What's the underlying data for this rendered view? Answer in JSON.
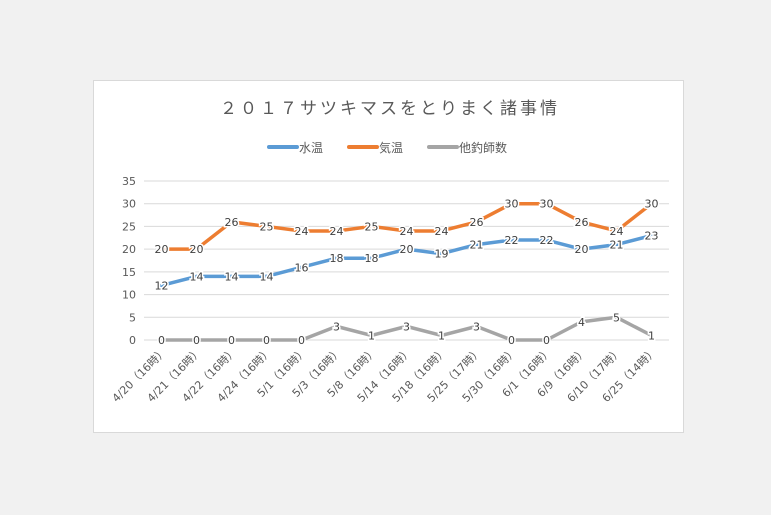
{
  "chart_data": {
    "type": "line",
    "title": "２０１７サツキマスをとりまく諸事情",
    "xlabel": "",
    "ylabel": "",
    "ylim": [
      0,
      35
    ],
    "yticks": [
      0,
      5,
      10,
      15,
      20,
      25,
      30,
      35
    ],
    "grid": true,
    "legend_position": "top",
    "categories": [
      "4/20（16時）",
      "4/21（16時）",
      "4/22（16時）",
      "4/24（16時）",
      "5/1（16時）",
      "5/3（16時）",
      "5/8（16時）",
      "5/14（16時）",
      "5/18（16時）",
      "5/25（17時）",
      "5/30（16時）",
      "6/1（16時）",
      "6/9（16時）",
      "6/10（17時）",
      "6/25（14時）"
    ],
    "series": [
      {
        "name": "水温",
        "color": "#5b9bd5",
        "values": [
          12,
          14,
          14,
          14,
          16,
          18,
          18,
          20,
          19,
          21,
          22,
          22,
          20,
          21,
          23
        ]
      },
      {
        "name": "気温",
        "color": "#ed7d31",
        "values": [
          20,
          20,
          26,
          25,
          24,
          24,
          25,
          24,
          24,
          26,
          30,
          30,
          26,
          24,
          30
        ]
      },
      {
        "name": "他釣師数",
        "color": "#a5a5a5",
        "values": [
          0,
          0,
          0,
          0,
          0,
          3,
          1,
          3,
          1,
          3,
          0,
          0,
          4,
          5,
          1
        ]
      }
    ]
  }
}
